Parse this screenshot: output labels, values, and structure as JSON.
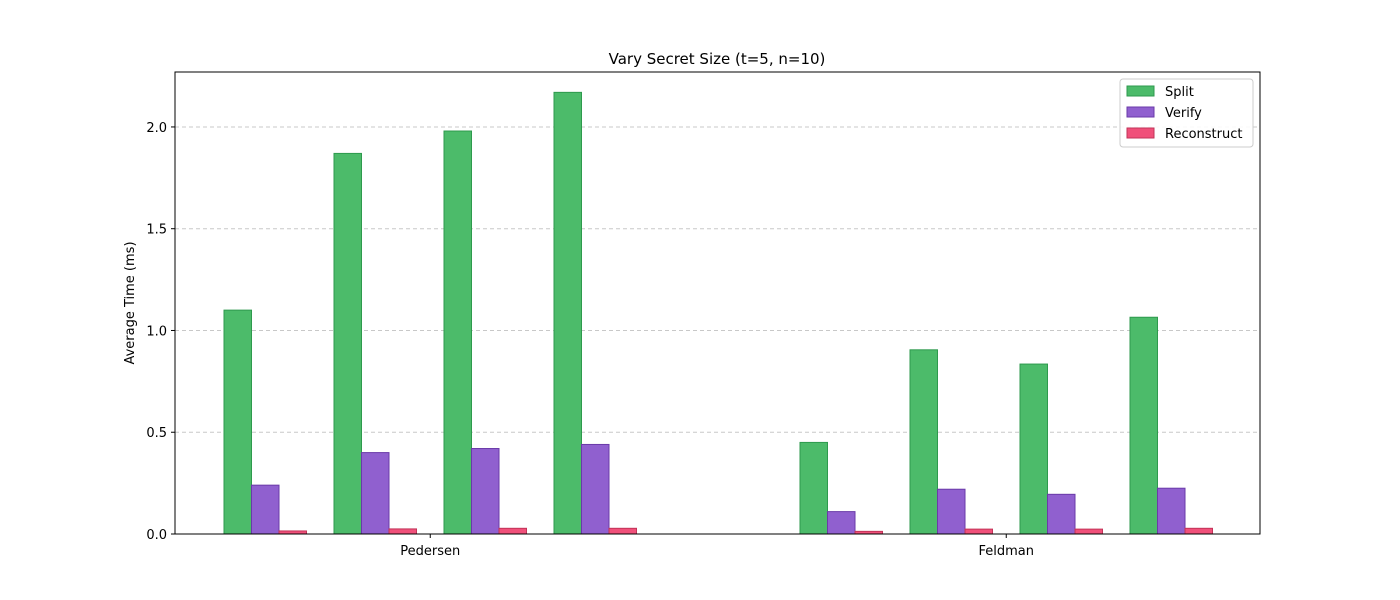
{
  "chart_data": {
    "type": "bar",
    "title": "Vary Secret Size (t=5, n=10)",
    "xlabel": "",
    "ylabel": "Average Time (ms)",
    "ylim": [
      0,
      2.27
    ],
    "yticks": [
      0.0,
      0.5,
      1.0,
      1.5,
      2.0
    ],
    "ytick_labels": [
      "0.0",
      "0.5",
      "1.0",
      "1.5",
      "2.0"
    ],
    "grid": "y-dashed",
    "legend_position": "top-right",
    "groups": [
      "Pedersen",
      "Feldman"
    ],
    "bars_per_group": 4,
    "series": [
      {
        "name": "Split",
        "color": "#4cbb6a",
        "edge": "#2e9a4d",
        "values": [
          [
            1.1,
            1.87,
            1.98,
            2.17
          ],
          [
            0.45,
            0.905,
            0.835,
            1.065
          ]
        ]
      },
      {
        "name": "Verify",
        "color": "#9060cf",
        "edge": "#6a3aa8",
        "values": [
          [
            0.24,
            0.4,
            0.42,
            0.44
          ],
          [
            0.11,
            0.22,
            0.195,
            0.225
          ]
        ]
      },
      {
        "name": "Reconstruct",
        "color": "#f0507a",
        "edge": "#c23358",
        "values": [
          [
            0.015,
            0.025,
            0.028,
            0.028
          ],
          [
            0.013,
            0.024,
            0.024,
            0.028
          ]
        ]
      }
    ]
  }
}
